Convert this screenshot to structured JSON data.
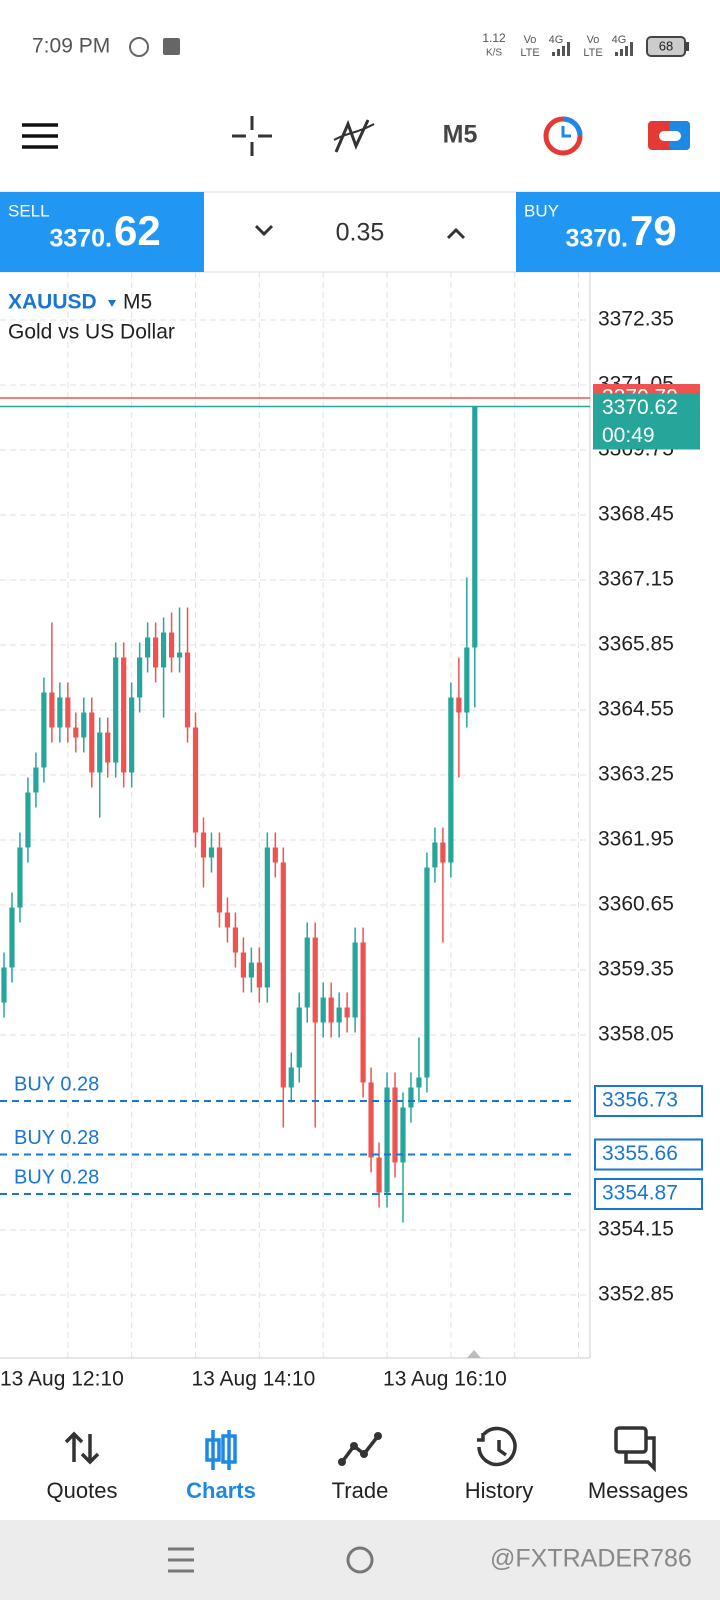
{
  "status_bar": {
    "time": "7:09 PM",
    "speed": "1.12",
    "speed_unit": "K/S",
    "sims": [
      {
        "top": "Vo",
        "bottom": "LTE",
        "gen": "4G"
      },
      {
        "top": "Vo",
        "bottom": "LTE",
        "gen": "4G"
      }
    ],
    "battery": "68"
  },
  "toolbar": {
    "timeframe": "M5"
  },
  "trade_panel": {
    "sell": {
      "label": "SELL",
      "price_head": "3370.",
      "price_tail": "62"
    },
    "volume": "0.35",
    "buy": {
      "label": "BUY",
      "price_head": "3370.",
      "price_tail": "79"
    }
  },
  "chart_data": {
    "type": "candlestick",
    "symbol": "XAUUSD",
    "timeframe": "M5",
    "subtitle": "Gold vs US Dollar",
    "categories": [
      "13 Aug 12:10",
      null,
      null,
      null,
      null,
      null,
      null,
      null,
      null,
      null,
      null,
      null,
      null,
      null,
      null,
      null,
      null,
      null,
      null,
      null,
      null,
      null,
      null,
      null,
      "13 Aug 14:10",
      null,
      null,
      null,
      null,
      null,
      null,
      null,
      null,
      null,
      null,
      null,
      null,
      null,
      null,
      null,
      null,
      null,
      null,
      null,
      null,
      null,
      null,
      null,
      "13 Aug 16:10",
      null,
      null,
      null,
      null,
      null,
      null,
      null,
      null,
      null,
      null,
      null
    ],
    "open": [
      3358.7,
      3359.4,
      3360.6,
      3361.8,
      3362.9,
      3363.4,
      3364.9,
      3364.2,
      3364.8,
      3364.2,
      3364.0,
      3364.5,
      3363.3,
      3364.1,
      3363.5,
      3365.6,
      3363.3,
      3364.8,
      3365.6,
      3366.0,
      3365.4,
      3366.1,
      3365.6,
      3365.7,
      3364.2,
      3362.1,
      3361.6,
      3361.8,
      3360.5,
      3360.2,
      3359.7,
      3359.2,
      3359.5,
      3359.0,
      3361.8,
      3361.5,
      3357.0,
      3357.4,
      3358.6,
      3360.0,
      3358.3,
      3358.8,
      3358.3,
      3358.6,
      3358.4,
      3359.9,
      3357.1,
      3355.6,
      3354.9,
      3357.0,
      3355.5,
      3356.6,
      3357.0,
      3357.2,
      3361.4,
      3361.9,
      3361.5,
      3364.8,
      3364.5,
      3365.8
    ],
    "high": [
      3359.7,
      3360.9,
      3362.1,
      3363.2,
      3363.7,
      3365.2,
      3366.3,
      3365.1,
      3365.1,
      3364.5,
      3364.8,
      3364.8,
      3364.4,
      3364.4,
      3365.9,
      3365.9,
      3365.1,
      3365.9,
      3366.3,
      3366.3,
      3366.4,
      3366.5,
      3366.6,
      3366.6,
      3364.5,
      3362.4,
      3362.1,
      3362.1,
      3360.8,
      3360.5,
      3360.0,
      3359.8,
      3359.8,
      3362.1,
      3362.1,
      3361.8,
      3357.7,
      3358.9,
      3360.3,
      3360.3,
      3359.1,
      3359.1,
      3358.9,
      3358.9,
      3360.2,
      3360.2,
      3357.4,
      3355.9,
      3357.3,
      3357.3,
      3356.9,
      3357.3,
      3358.0,
      3361.7,
      3362.2,
      3362.2,
      3365.1,
      3365.6,
      3367.2,
      3370.62
    ],
    "low": [
      3358.4,
      3359.1,
      3360.3,
      3361.5,
      3362.6,
      3363.1,
      3363.9,
      3363.9,
      3363.9,
      3363.7,
      3363.7,
      3363.0,
      3362.4,
      3363.2,
      3363.2,
      3363.0,
      3363.0,
      3364.5,
      3365.3,
      3365.1,
      3364.4,
      3365.3,
      3365.3,
      3363.9,
      3361.8,
      3361.0,
      3361.3,
      3360.2,
      3359.9,
      3359.4,
      3358.9,
      3358.9,
      3358.7,
      3358.7,
      3361.2,
      3356.2,
      3356.7,
      3357.1,
      3358.3,
      3356.2,
      3358.0,
      3358.0,
      3358.0,
      3358.1,
      3358.1,
      3356.8,
      3355.3,
      3354.6,
      3354.6,
      3355.2,
      3354.3,
      3356.3,
      3356.7,
      3356.9,
      3361.1,
      3359.9,
      3361.2,
      3363.2,
      3364.2,
      3364.6
    ],
    "close": [
      3359.4,
      3360.6,
      3361.8,
      3362.9,
      3363.4,
      3364.9,
      3364.2,
      3364.8,
      3364.2,
      3364.0,
      3364.5,
      3363.3,
      3364.1,
      3363.5,
      3365.6,
      3363.3,
      3364.8,
      3365.6,
      3366.0,
      3365.4,
      3366.1,
      3365.6,
      3365.7,
      3364.2,
      3362.1,
      3361.6,
      3361.8,
      3360.5,
      3360.2,
      3359.7,
      3359.2,
      3359.5,
      3359.0,
      3361.8,
      3361.5,
      3357.0,
      3357.4,
      3358.6,
      3360.0,
      3358.3,
      3358.8,
      3358.3,
      3358.6,
      3358.4,
      3359.9,
      3357.1,
      3355.6,
      3354.9,
      3357.0,
      3355.5,
      3356.6,
      3357.0,
      3357.2,
      3361.4,
      3361.9,
      3361.5,
      3364.8,
      3364.5,
      3365.8,
      3370.62
    ],
    "up_color": "#26a69a",
    "down_color": "#ef5350",
    "ask": 3370.79,
    "ask_color": "#ef5350",
    "bid": 3370.62,
    "bid_color": "#26a69a",
    "countdown": "00:49",
    "orders": [
      {
        "label": "BUY 0.28",
        "price": 3356.73
      },
      {
        "label": "BUY 0.28",
        "price": 3355.66
      },
      {
        "label": "BUY 0.28",
        "price": 3354.87
      }
    ],
    "order_color": "#1976d2",
    "ylim": [
      3351.59,
      3373.31
    ],
    "yticks": [
      3372.35,
      3371.05,
      3369.75,
      3368.45,
      3367.15,
      3365.85,
      3364.55,
      3363.25,
      3361.95,
      3360.65,
      3359.35,
      3358.05,
      3354.15,
      3352.85
    ],
    "grid": true
  },
  "bottom_nav": [
    "Quotes",
    "Charts",
    "Trade",
    "History",
    "Messages"
  ],
  "watermark": "@FXTRADER786"
}
